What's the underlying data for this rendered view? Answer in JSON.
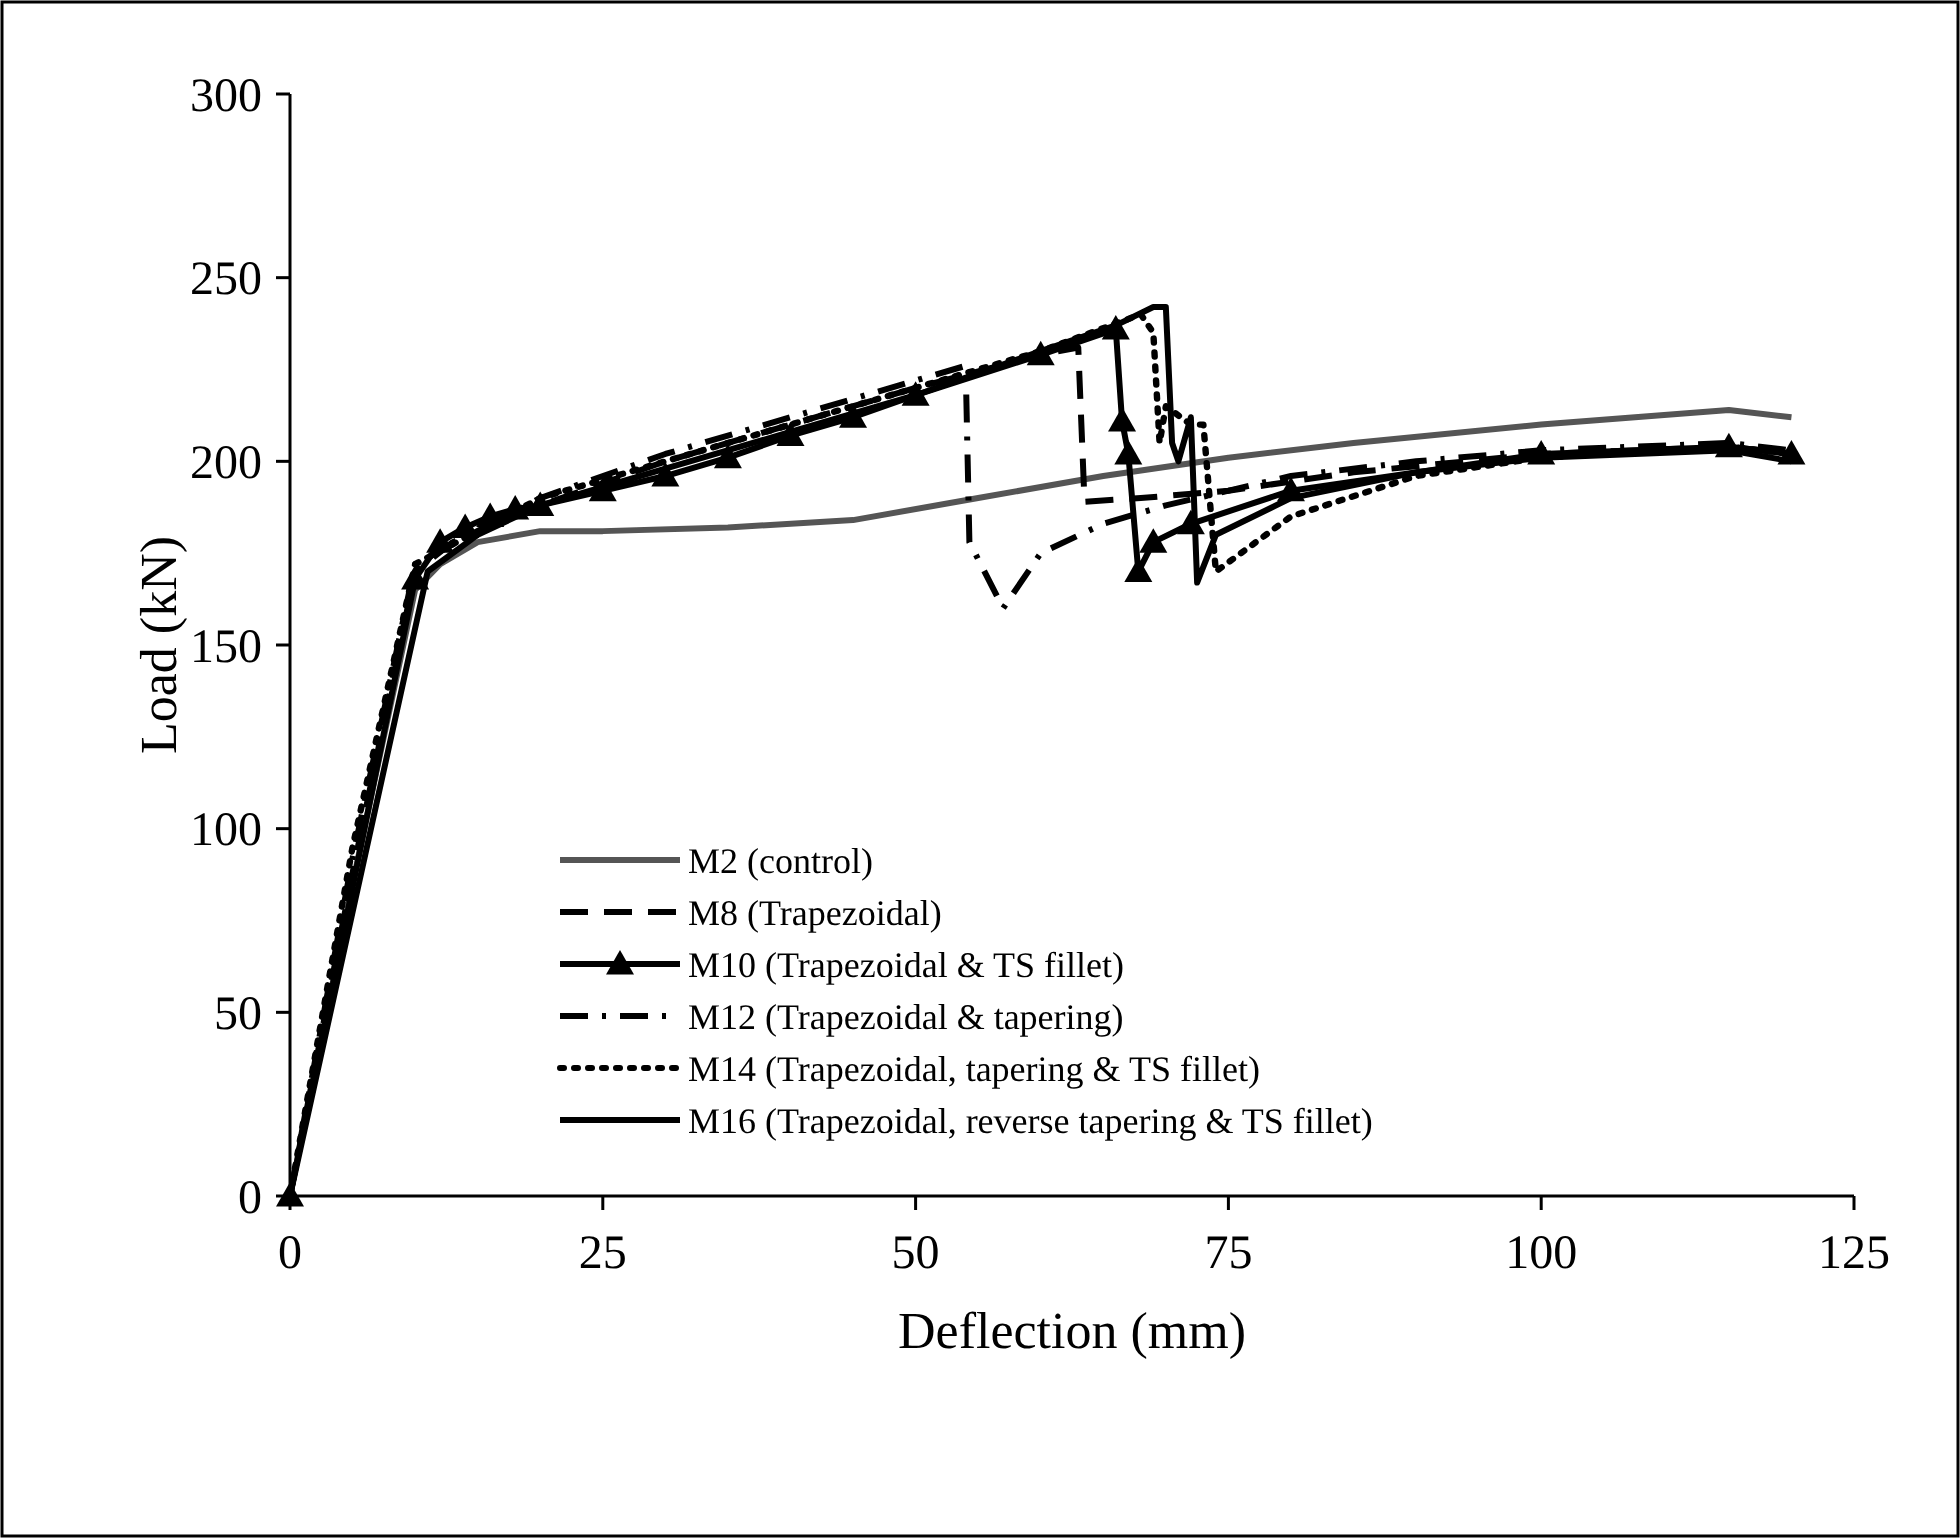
{
  "chart_data": {
    "type": "line",
    "xlabel": "Deflection (mm)",
    "ylabel": "Load (kN)",
    "xlim": [
      0,
      125
    ],
    "ylim": [
      0,
      300
    ],
    "xticks": [
      0,
      25,
      50,
      75,
      100,
      125
    ],
    "yticks": [
      0,
      50,
      100,
      150,
      200,
      250,
      300
    ],
    "grid": false,
    "legend": "bottom",
    "series": [
      {
        "name": "M2 (control)",
        "color": "#555555",
        "line_style": "solid",
        "marker": "none",
        "x": [
          0,
          5,
          10,
          12,
          15,
          20,
          25,
          35,
          45,
          55,
          65,
          75,
          85,
          100,
          115,
          120
        ],
        "values": [
          0,
          85,
          165,
          172,
          178,
          181,
          181,
          182,
          184,
          190,
          196,
          201,
          205,
          210,
          214,
          212
        ]
      },
      {
        "name": "M8 (Trapezoidal)",
        "color": "#000000",
        "line_style": "dashed",
        "marker": "none",
        "x": [
          0,
          5,
          10,
          13,
          20,
          30,
          40,
          50,
          60,
          63,
          63.5,
          68,
          75,
          85,
          100,
          115,
          120
        ],
        "values": [
          0,
          88,
          170,
          178,
          188,
          200,
          210,
          220,
          229,
          231,
          189,
          190,
          192,
          197,
          202,
          204,
          202
        ]
      },
      {
        "name": "M10 (Trapezoidal & TS fillet)",
        "color": "#000000",
        "line_style": "solid",
        "marker": "triangle",
        "x": [
          0,
          10,
          12,
          14,
          16,
          18,
          20,
          25,
          30,
          35,
          40,
          45,
          50,
          60,
          66,
          66.5,
          67,
          67.8,
          69,
          72,
          80,
          100,
          115,
          120
        ],
        "values": [
          0,
          168,
          178,
          182,
          185,
          187,
          188,
          192,
          196,
          201,
          207,
          212,
          218,
          229,
          236,
          211,
          202,
          170,
          178,
          183,
          192,
          202,
          204,
          202
        ]
      },
      {
        "name": "M12 (Trapezoidal & tapering)",
        "color": "#000000",
        "line_style": "dashdot",
        "marker": "none",
        "x": [
          0,
          5,
          10,
          20,
          30,
          40,
          50,
          54,
          54.3,
          57,
          60,
          65,
          70,
          80,
          90,
          100,
          115,
          120
        ],
        "values": [
          0,
          92,
          172,
          190,
          202,
          212,
          222,
          226,
          178,
          160,
          175,
          183,
          188,
          196,
          200,
          203,
          205,
          203
        ]
      },
      {
        "name": "M14 (Trapezoidal, tapering & TS fillet)",
        "color": "#000000",
        "line_style": "dotted",
        "marker": "none",
        "x": [
          0,
          5,
          10,
          20,
          30,
          40,
          50,
          60,
          68,
          69,
          69.5,
          70,
          72,
          73,
          74,
          76,
          80,
          90,
          100,
          115,
          120
        ],
        "values": [
          0,
          95,
          172,
          190,
          200,
          210,
          220,
          230,
          240,
          235,
          205,
          215,
          210,
          210,
          170,
          175,
          185,
          196,
          201,
          204,
          202
        ]
      },
      {
        "name": "M16 (Trapezoidal, reverse tapering & TS fillet)",
        "color": "#000000",
        "line_style": "solid",
        "marker": "none",
        "x": [
          0,
          11,
          15,
          20,
          30,
          40,
          50,
          60,
          66,
          69,
          70,
          70.5,
          71,
          72,
          72.5,
          74,
          80,
          90,
          100,
          115,
          120
        ],
        "values": [
          0,
          170,
          180,
          188,
          198,
          208,
          218,
          230,
          237,
          242,
          242,
          205,
          200,
          212,
          167,
          180,
          190,
          197,
          201,
          203,
          200
        ]
      }
    ]
  }
}
